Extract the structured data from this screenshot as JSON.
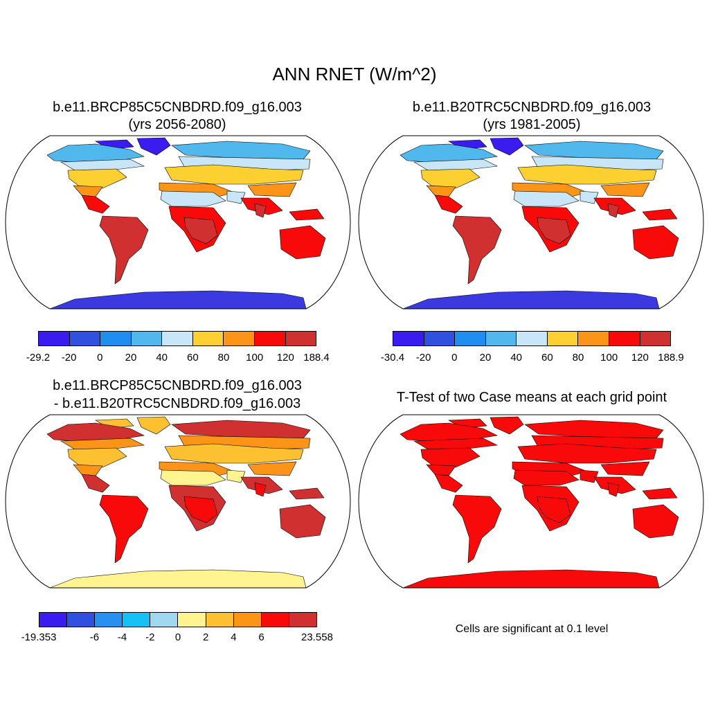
{
  "figure": {
    "title": "ANN RNET (W/m^2)"
  },
  "panels": [
    {
      "id": "p1",
      "title_line1": "b.e11.BRCP85C5CNBDRD.f09_g16.003",
      "title_line2": "(yrs 2056-2080)",
      "colorbar": {
        "colors": [
          "#3a1cf0",
          "#3050e0",
          "#1e8ff0",
          "#50b8ec",
          "#c8e6f8",
          "#fcd030",
          "#fc9418",
          "#f80a0a",
          "#d03030"
        ],
        "labels": [
          "-29.2",
          "-20",
          "0",
          "20",
          "40",
          "60",
          "80",
          "100",
          "120",
          "188.4"
        ]
      }
    },
    {
      "id": "p2",
      "title_line1": "b.e11.B20TRC5CNBDRD.f09_g16.003",
      "title_line2": "(yrs 1981-2005)",
      "colorbar": {
        "colors": [
          "#3a1cf0",
          "#3050e0",
          "#1e8ff0",
          "#50b8ec",
          "#c8e6f8",
          "#fcd030",
          "#fc9418",
          "#f80a0a",
          "#d03030"
        ],
        "labels": [
          "-30.4",
          "-20",
          "0",
          "20",
          "40",
          "60",
          "80",
          "100",
          "120",
          "188.9"
        ]
      }
    },
    {
      "id": "p3",
      "title_line1": "b.e11.BRCP85C5CNBDRD.f09_g16.003",
      "title_line2": "- b.e11.B20TRC5CNBDRD.f09_g16.003",
      "colorbar": {
        "colors": [
          "#3a1cf0",
          "#3050e0",
          "#2890f0",
          "#18c0f8",
          "#a0d8f0",
          "#fff490",
          "#fcc030",
          "#fc9418",
          "#f80a0a",
          "#d03030"
        ],
        "labels": [
          "-19.353",
          "-6",
          "-4",
          "-2",
          "0",
          "2",
          "4",
          "6",
          "23.558"
        ]
      }
    },
    {
      "id": "p4",
      "title_line1": "T-Test of two Case means at each grid point",
      "note": "Cells are significant at 0.1 level"
    }
  ],
  "chart_data": [
    {
      "type": "heatmap",
      "projection": "Robinson (global)",
      "title": "b.e11.BRCP85C5CNBDRD.f09_g16.003 (yrs 2056-2080)",
      "units": "W/m^2",
      "colorbar_range": [
        -29.2,
        188.4
      ],
      "colorbar_levels": [
        -20,
        0,
        20,
        40,
        60,
        80,
        100,
        120
      ]
    },
    {
      "type": "heatmap",
      "projection": "Robinson (global)",
      "title": "b.e11.B20TRC5CNBDRD.f09_g16.003 (yrs 1981-2005)",
      "units": "W/m^2",
      "colorbar_range": [
        -30.4,
        188.9
      ],
      "colorbar_levels": [
        -20,
        0,
        20,
        40,
        60,
        80,
        100,
        120
      ]
    },
    {
      "type": "heatmap",
      "projection": "Robinson (global)",
      "title": "b.e11.BRCP85C5CNBDRD.f09_g16.003 - b.e11.B20TRC5CNBDRD.f09_g16.003",
      "units": "W/m^2",
      "colorbar_range": [
        -19.353,
        23.558
      ],
      "colorbar_levels": [
        -6,
        -4,
        -2,
        0,
        2,
        4,
        6
      ]
    },
    {
      "type": "heatmap",
      "projection": "Robinson (global)",
      "title": "T-Test of two Case means at each grid point",
      "significance_level": 0.1
    }
  ],
  "map_palettes": {
    "p1": {
      "arctic": "#3a1cf0",
      "high": "#50b8ec",
      "subarctic": "#c8e6f8",
      "mid": "#fcd030",
      "warm": "#fc9418",
      "hot": "#f80a0a",
      "tropic": "#d03030",
      "desert": "#c8e6f8",
      "antarctic": "#3a3ae0"
    },
    "p2": {
      "arctic": "#3a1cf0",
      "high": "#50b8ec",
      "subarctic": "#c8e6f8",
      "mid": "#fcd030",
      "warm": "#fc9418",
      "hot": "#f80a0a",
      "tropic": "#d03030",
      "desert": "#c8e6f8",
      "antarctic": "#3a3ae0"
    },
    "p3": {
      "arctic": "#fcc030",
      "high": "#d03030",
      "subarctic": "#fc9418",
      "mid": "#fcc030",
      "warm": "#fc9418",
      "hot": "#d03030",
      "tropic": "#f80a0a",
      "desert": "#fff490",
      "antarctic": "#fff490"
    },
    "p4": {
      "arctic": "#f80a0a",
      "high": "#f80a0a",
      "subarctic": "#f80a0a",
      "mid": "#f80a0a",
      "warm": "#f80a0a",
      "hot": "#f80a0a",
      "tropic": "#f80a0a",
      "desert": "#f80a0a",
      "antarctic": "#f80a0a"
    }
  }
}
